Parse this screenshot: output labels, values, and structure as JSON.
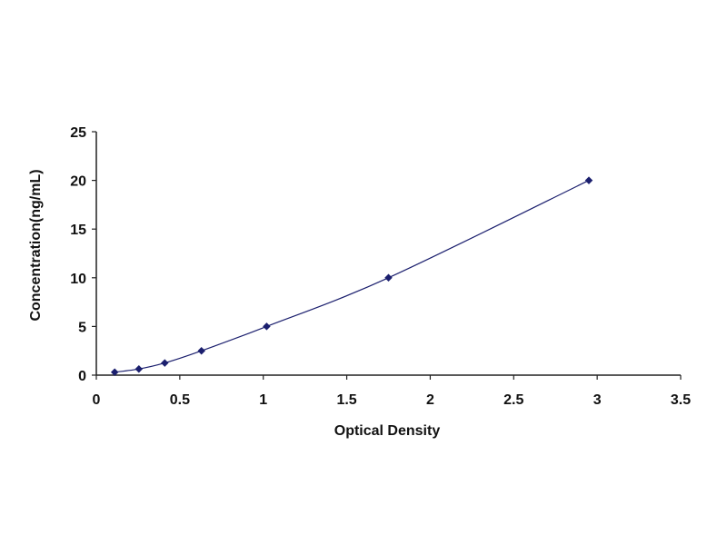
{
  "chart_data": {
    "type": "scatter",
    "title": "",
    "xlabel": "Optical Density",
    "ylabel": "Concentration(ng/mL)",
    "xlim": [
      0,
      3.5
    ],
    "ylim": [
      0,
      25
    ],
    "xticks": [
      "0",
      "0.5",
      "1",
      "1.5",
      "2",
      "2.5",
      "3",
      "3.5"
    ],
    "yticks": [
      "0",
      "5",
      "10",
      "15",
      "20",
      "25"
    ],
    "grid": false,
    "legend": "none",
    "series": [
      {
        "x": [
          0.11,
          0.255,
          0.41,
          0.63,
          1.02,
          1.75,
          2.95
        ],
        "y": [
          0.31,
          0.63,
          1.25,
          2.5,
          5,
          10,
          20
        ],
        "fit_line": true
      }
    ],
    "colors": {
      "series": "#1b1f6e",
      "axis": "#222222"
    }
  }
}
